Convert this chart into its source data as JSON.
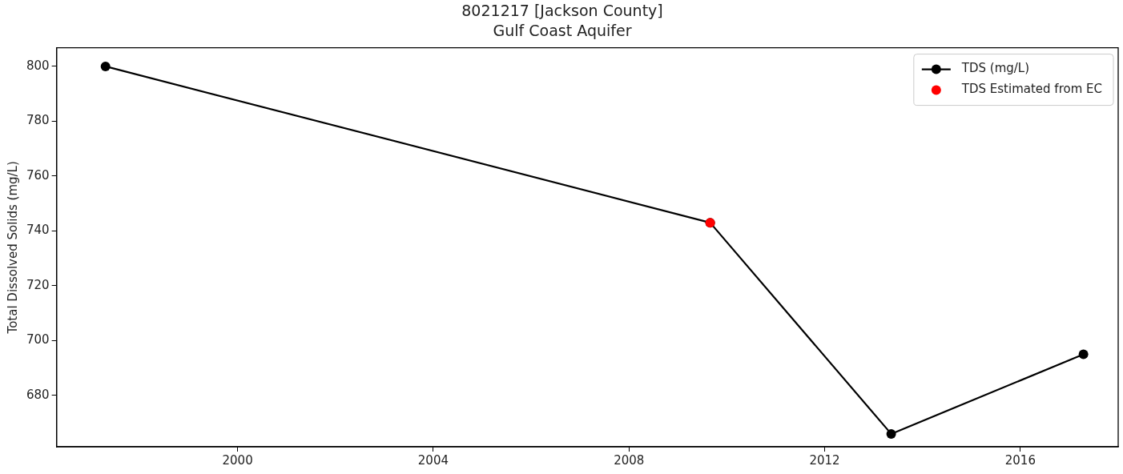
{
  "chart_data": {
    "type": "line",
    "title": "8021217 [Jackson County]",
    "subtitle": "Gulf Coast Aquifer",
    "ylabel": "Total Dissolved Solids (mg/L)",
    "series": [
      {
        "name": "TDS (mg/L)",
        "type": "line",
        "color": "#000000",
        "x": [
          1997.3,
          2009.66,
          2013.36,
          2017.29
        ],
        "values": [
          800,
          743,
          666,
          695
        ]
      },
      {
        "name": "TDS Estimated from EC",
        "type": "scatter",
        "color": "#ff0000",
        "x": [
          2009.66
        ],
        "values": [
          743
        ]
      }
    ],
    "xlim": [
      1996.3,
      2018.0
    ],
    "xticks": [
      2000,
      2004,
      2008,
      2012,
      2016
    ],
    "ylim": [
      661.3,
      806.8
    ],
    "yticks": [
      680,
      700,
      720,
      740,
      760,
      780,
      800
    ],
    "grid": false,
    "legend": "top right",
    "marker": "circle"
  }
}
